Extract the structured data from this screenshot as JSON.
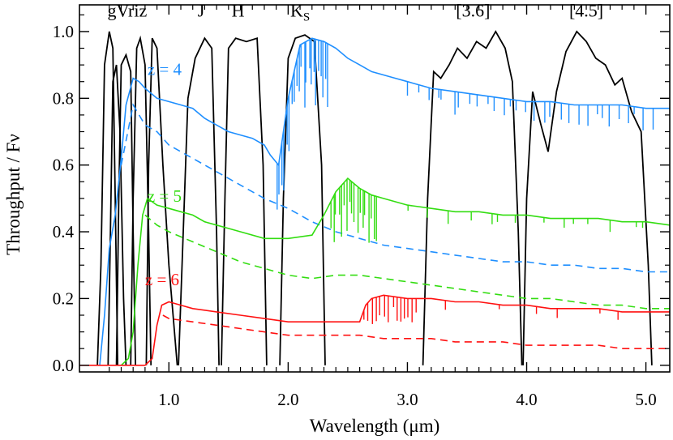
{
  "chart_data": {
    "type": "line",
    "xlabel": "Wavelength (μm)",
    "ylabel": "Throughput / Fν",
    "xlim": [
      0.25,
      5.2
    ],
    "ylim": [
      -0.02,
      1.08
    ],
    "x_ticks": [
      {
        "value": 1.0,
        "label": "1.0"
      },
      {
        "value": 2.0,
        "label": "2.0"
      },
      {
        "value": 3.0,
        "label": "3.0"
      },
      {
        "value": 4.0,
        "label": "4.0"
      },
      {
        "value": 5.0,
        "label": "5.0"
      }
    ],
    "y_ticks": [
      {
        "value": 0.0,
        "label": "0.0"
      },
      {
        "value": 0.2,
        "label": "0.2"
      },
      {
        "value": 0.4,
        "label": "0.4"
      },
      {
        "value": 0.6,
        "label": "0.6"
      },
      {
        "value": 0.8,
        "label": "0.8"
      },
      {
        "value": 1.0,
        "label": "1.0"
      }
    ],
    "filters": [
      {
        "name": "g",
        "points": [
          [
            0.4,
            0
          ],
          [
            0.43,
            0.3
          ],
          [
            0.46,
            0.9
          ],
          [
            0.5,
            1.0
          ],
          [
            0.53,
            0.95
          ],
          [
            0.55,
            0.5
          ],
          [
            0.57,
            0
          ]
        ]
      },
      {
        "name": "V",
        "points": [
          [
            0.49,
            0
          ],
          [
            0.51,
            0.4
          ],
          [
            0.53,
            0.85
          ],
          [
            0.56,
            0.9
          ],
          [
            0.59,
            0.7
          ],
          [
            0.62,
            0.2
          ],
          [
            0.64,
            0
          ]
        ]
      },
      {
        "name": "r",
        "points": [
          [
            0.56,
            0
          ],
          [
            0.58,
            0.5
          ],
          [
            0.6,
            0.9
          ],
          [
            0.64,
            0.93
          ],
          [
            0.68,
            0.88
          ],
          [
            0.7,
            0.4
          ],
          [
            0.72,
            0
          ]
        ]
      },
      {
        "name": "i",
        "points": [
          [
            0.68,
            0
          ],
          [
            0.7,
            0.5
          ],
          [
            0.73,
            0.95
          ],
          [
            0.76,
            0.98
          ],
          [
            0.8,
            0.9
          ],
          [
            0.83,
            0.4
          ],
          [
            0.85,
            0
          ]
        ]
      },
      {
        "name": "z",
        "points": [
          [
            0.81,
            0
          ],
          [
            0.83,
            0.6
          ],
          [
            0.86,
            0.98
          ],
          [
            0.9,
            0.95
          ],
          [
            0.95,
            0.6
          ],
          [
            1.0,
            0.3
          ],
          [
            1.07,
            0
          ]
        ]
      },
      {
        "name": "J",
        "points": [
          [
            1.08,
            0
          ],
          [
            1.12,
            0.4
          ],
          [
            1.16,
            0.8
          ],
          [
            1.22,
            0.92
          ],
          [
            1.3,
            0.98
          ],
          [
            1.36,
            0.95
          ],
          [
            1.4,
            0.4
          ],
          [
            1.42,
            0
          ]
        ]
      },
      {
        "name": "H",
        "points": [
          [
            1.44,
            0
          ],
          [
            1.47,
            0.5
          ],
          [
            1.5,
            0.95
          ],
          [
            1.56,
            0.98
          ],
          [
            1.65,
            0.97
          ],
          [
            1.74,
            0.98
          ],
          [
            1.79,
            0.6
          ],
          [
            1.82,
            0
          ]
        ]
      },
      {
        "name": "Ks",
        "points": [
          [
            1.93,
            0
          ],
          [
            1.96,
            0.5
          ],
          [
            2.0,
            0.92
          ],
          [
            2.06,
            0.98
          ],
          [
            2.14,
            0.99
          ],
          [
            2.22,
            0.97
          ],
          [
            2.28,
            0.6
          ],
          [
            2.31,
            0
          ]
        ]
      },
      {
        "name": "[3.6]",
        "points": [
          [
            3.13,
            0
          ],
          [
            3.17,
            0.5
          ],
          [
            3.22,
            0.88
          ],
          [
            3.28,
            0.86
          ],
          [
            3.35,
            0.9
          ],
          [
            3.42,
            0.95
          ],
          [
            3.5,
            0.92
          ],
          [
            3.58,
            0.97
          ],
          [
            3.66,
            0.95
          ],
          [
            3.74,
            1.0
          ],
          [
            3.82,
            0.95
          ],
          [
            3.88,
            0.85
          ],
          [
            3.93,
            0.4
          ],
          [
            3.96,
            0
          ]
        ]
      },
      {
        "name": "[4.5]",
        "points": [
          [
            3.97,
            0
          ],
          [
            4.0,
            0.5
          ],
          [
            4.05,
            0.82
          ],
          [
            4.12,
            0.72
          ],
          [
            4.18,
            0.64
          ],
          [
            4.25,
            0.82
          ],
          [
            4.33,
            0.94
          ],
          [
            4.42,
            1.0
          ],
          [
            4.5,
            0.97
          ],
          [
            4.58,
            0.92
          ],
          [
            4.66,
            0.9
          ],
          [
            4.74,
            0.84
          ],
          [
            4.8,
            0.86
          ],
          [
            4.88,
            0.76
          ],
          [
            4.96,
            0.7
          ],
          [
            5.02,
            0.3
          ],
          [
            5.05,
            0
          ]
        ]
      }
    ],
    "filter_labels": [
      {
        "text": "gVriz",
        "x": 0.65,
        "y": 1.045
      },
      {
        "text": "J",
        "x": 1.27,
        "y": 1.045
      },
      {
        "text": "H",
        "x": 1.58,
        "y": 1.045
      },
      {
        "text": "K",
        "sub": "S",
        "x": 2.1,
        "y": 1.045
      },
      {
        "text": "[3.6]",
        "x": 3.55,
        "y": 1.045
      },
      {
        "text": "[4.5]",
        "x": 4.5,
        "y": 1.045
      }
    ],
    "series": [
      {
        "name": "z = 4",
        "color": "#1f8fff",
        "label_pos": [
          0.82,
          0.87
        ],
        "solid": [
          [
            0.42,
            0
          ],
          [
            0.46,
            0.15
          ],
          [
            0.5,
            0.35
          ],
          [
            0.55,
            0.45
          ],
          [
            0.6,
            0.62
          ],
          [
            0.64,
            0.78
          ],
          [
            0.7,
            0.86
          ],
          [
            0.75,
            0.85
          ],
          [
            0.8,
            0.83
          ],
          [
            0.9,
            0.8
          ],
          [
            1.0,
            0.79
          ],
          [
            1.1,
            0.78
          ],
          [
            1.2,
            0.77
          ],
          [
            1.3,
            0.74
          ],
          [
            1.4,
            0.72
          ],
          [
            1.5,
            0.7
          ],
          [
            1.6,
            0.69
          ],
          [
            1.7,
            0.68
          ],
          [
            1.8,
            0.66
          ],
          [
            1.85,
            0.63
          ],
          [
            1.92,
            0.6
          ],
          [
            2.0,
            0.8
          ],
          [
            2.1,
            0.96
          ],
          [
            2.2,
            0.98
          ],
          [
            2.3,
            0.97
          ],
          [
            2.4,
            0.95
          ],
          [
            2.5,
            0.92
          ],
          [
            2.6,
            0.9
          ],
          [
            2.7,
            0.88
          ],
          [
            2.8,
            0.87
          ],
          [
            2.9,
            0.86
          ],
          [
            3.0,
            0.85
          ],
          [
            3.2,
            0.83
          ],
          [
            3.4,
            0.82
          ],
          [
            3.6,
            0.81
          ],
          [
            3.8,
            0.8
          ],
          [
            4.0,
            0.79
          ],
          [
            4.2,
            0.79
          ],
          [
            4.4,
            0.78
          ],
          [
            4.6,
            0.78
          ],
          [
            4.8,
            0.78
          ],
          [
            5.0,
            0.77
          ],
          [
            5.2,
            0.77
          ]
        ],
        "dashed": [
          [
            0.6,
            0.6
          ],
          [
            0.7,
            0.78
          ],
          [
            0.8,
            0.72
          ],
          [
            0.9,
            0.7
          ],
          [
            1.0,
            0.66
          ],
          [
            1.2,
            0.62
          ],
          [
            1.4,
            0.58
          ],
          [
            1.6,
            0.54
          ],
          [
            1.8,
            0.5
          ],
          [
            2.0,
            0.47
          ],
          [
            2.2,
            0.43
          ],
          [
            2.4,
            0.4
          ],
          [
            2.6,
            0.38
          ],
          [
            2.8,
            0.36
          ],
          [
            3.0,
            0.35
          ],
          [
            3.2,
            0.34
          ],
          [
            3.4,
            0.33
          ],
          [
            3.6,
            0.32
          ],
          [
            3.8,
            0.31
          ],
          [
            4.0,
            0.31
          ],
          [
            4.2,
            0.3
          ],
          [
            4.4,
            0.3
          ],
          [
            4.6,
            0.29
          ],
          [
            4.8,
            0.29
          ],
          [
            5.0,
            0.28
          ],
          [
            5.2,
            0.28
          ]
        ]
      },
      {
        "name": "z = 5",
        "color": "#33dd11",
        "label_pos": [
          0.82,
          0.49
        ],
        "solid": [
          [
            0.6,
            0
          ],
          [
            0.66,
            0.02
          ],
          [
            0.7,
            0.1
          ],
          [
            0.74,
            0.3
          ],
          [
            0.78,
            0.45
          ],
          [
            0.82,
            0.5
          ],
          [
            0.9,
            0.48
          ],
          [
            1.0,
            0.47
          ],
          [
            1.1,
            0.46
          ],
          [
            1.2,
            0.45
          ],
          [
            1.3,
            0.43
          ],
          [
            1.4,
            0.42
          ],
          [
            1.5,
            0.41
          ],
          [
            1.6,
            0.4
          ],
          [
            1.8,
            0.38
          ],
          [
            2.0,
            0.38
          ],
          [
            2.2,
            0.39
          ],
          [
            2.3,
            0.45
          ],
          [
            2.4,
            0.52
          ],
          [
            2.5,
            0.56
          ],
          [
            2.6,
            0.53
          ],
          [
            2.7,
            0.51
          ],
          [
            2.8,
            0.5
          ],
          [
            3.0,
            0.48
          ],
          [
            3.2,
            0.47
          ],
          [
            3.4,
            0.46
          ],
          [
            3.6,
            0.46
          ],
          [
            3.8,
            0.45
          ],
          [
            4.0,
            0.45
          ],
          [
            4.2,
            0.44
          ],
          [
            4.4,
            0.44
          ],
          [
            4.6,
            0.44
          ],
          [
            4.8,
            0.43
          ],
          [
            5.0,
            0.43
          ],
          [
            5.2,
            0.42
          ]
        ],
        "dashed": [
          [
            0.8,
            0.45
          ],
          [
            0.9,
            0.42
          ],
          [
            1.0,
            0.4
          ],
          [
            1.2,
            0.37
          ],
          [
            1.4,
            0.34
          ],
          [
            1.6,
            0.31
          ],
          [
            1.8,
            0.29
          ],
          [
            2.0,
            0.27
          ],
          [
            2.2,
            0.26
          ],
          [
            2.4,
            0.27
          ],
          [
            2.6,
            0.27
          ],
          [
            2.8,
            0.26
          ],
          [
            3.0,
            0.25
          ],
          [
            3.2,
            0.24
          ],
          [
            3.4,
            0.23
          ],
          [
            3.6,
            0.22
          ],
          [
            3.8,
            0.21
          ],
          [
            4.0,
            0.2
          ],
          [
            4.2,
            0.2
          ],
          [
            4.4,
            0.19
          ],
          [
            4.6,
            0.18
          ],
          [
            4.8,
            0.18
          ],
          [
            5.0,
            0.17
          ],
          [
            5.2,
            0.17
          ]
        ]
      },
      {
        "name": "z = 6",
        "color": "#ff1111",
        "label_pos": [
          0.8,
          0.24
        ],
        "solid": [
          [
            0.25,
            0
          ],
          [
            0.8,
            0
          ],
          [
            0.86,
            0.02
          ],
          [
            0.9,
            0.12
          ],
          [
            0.94,
            0.18
          ],
          [
            1.0,
            0.19
          ],
          [
            1.1,
            0.18
          ],
          [
            1.2,
            0.17
          ],
          [
            1.4,
            0.16
          ],
          [
            1.6,
            0.15
          ],
          [
            1.8,
            0.14
          ],
          [
            2.0,
            0.13
          ],
          [
            2.2,
            0.13
          ],
          [
            2.4,
            0.13
          ],
          [
            2.6,
            0.13
          ],
          [
            2.65,
            0.18
          ],
          [
            2.7,
            0.2
          ],
          [
            2.8,
            0.21
          ],
          [
            3.0,
            0.2
          ],
          [
            3.2,
            0.2
          ],
          [
            3.4,
            0.19
          ],
          [
            3.6,
            0.19
          ],
          [
            3.8,
            0.18
          ],
          [
            4.0,
            0.18
          ],
          [
            4.2,
            0.17
          ],
          [
            4.4,
            0.17
          ],
          [
            4.6,
            0.17
          ],
          [
            4.8,
            0.16
          ],
          [
            5.0,
            0.16
          ],
          [
            5.2,
            0.16
          ]
        ],
        "dashed": [
          [
            0.95,
            0.15
          ],
          [
            1.0,
            0.14
          ],
          [
            1.2,
            0.13
          ],
          [
            1.4,
            0.12
          ],
          [
            1.6,
            0.11
          ],
          [
            1.8,
            0.1
          ],
          [
            2.0,
            0.09
          ],
          [
            2.2,
            0.09
          ],
          [
            2.4,
            0.09
          ],
          [
            2.6,
            0.09
          ],
          [
            2.8,
            0.08
          ],
          [
            3.0,
            0.08
          ],
          [
            3.2,
            0.08
          ],
          [
            3.4,
            0.07
          ],
          [
            3.6,
            0.07
          ],
          [
            3.8,
            0.07
          ],
          [
            4.0,
            0.06
          ],
          [
            4.2,
            0.06
          ],
          [
            4.4,
            0.06
          ],
          [
            4.6,
            0.06
          ],
          [
            4.8,
            0.05
          ],
          [
            5.0,
            0.05
          ],
          [
            5.2,
            0.05
          ]
        ]
      }
    ],
    "absorption_features": [
      {
        "series": 0,
        "x_range": [
          1.9,
          2.35
        ],
        "count": 22,
        "depth": 0.2
      },
      {
        "series": 0,
        "x_range": [
          3.0,
          5.1
        ],
        "count": 30,
        "depth": 0.07
      },
      {
        "series": 1,
        "x_range": [
          2.35,
          2.75
        ],
        "count": 18,
        "depth": 0.16
      },
      {
        "series": 1,
        "x_range": [
          3.0,
          5.1
        ],
        "count": 14,
        "depth": 0.04
      },
      {
        "series": 2,
        "x_range": [
          2.62,
          3.1
        ],
        "count": 14,
        "depth": 0.09
      },
      {
        "series": 2,
        "x_range": [
          3.3,
          5.0
        ],
        "count": 6,
        "depth": 0.03
      }
    ]
  }
}
